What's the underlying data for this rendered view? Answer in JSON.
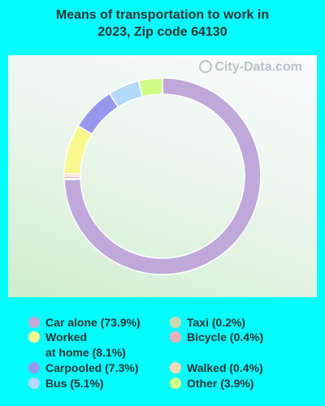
{
  "chart_data": {
    "type": "pie",
    "title": "Means of transportation to work in 2023, Zip code 64130",
    "categories": [
      "Car alone",
      "Taxi",
      "Bicycle",
      "Walked",
      "Worked at home",
      "Carpooled",
      "Bus",
      "Other"
    ],
    "values": [
      73.9,
      0.2,
      0.4,
      0.4,
      8.1,
      7.3,
      5.1,
      3.9
    ],
    "colors": [
      "#BFA8DA",
      "#C9D8B0",
      "#F0B0B8",
      "#F9D9B5",
      "#F8F88E",
      "#9797EE",
      "#B3D9FB",
      "#CFFD88"
    ],
    "legend_placement": "bottom",
    "donut": true
  },
  "title_line1": "Means of transportation to work in",
  "title_line2": "2023, Zip code 64130",
  "watermark": "City-Data.com",
  "legend": [
    {
      "label": "Car alone (73.9%)",
      "color": "#BFA8DA"
    },
    {
      "label": "Worked",
      "label2": "at home (8.1%)",
      "color": "#F8F88E"
    },
    {
      "label": "Carpooled (7.3%)",
      "color": "#9797EE"
    },
    {
      "label": "Bus (5.1%)",
      "color": "#B3D9FB"
    },
    {
      "label": "Taxi (0.2%)",
      "color": "#C9D8B0"
    },
    {
      "label": "Bicycle (0.4%)",
      "color": "#F0B0B8"
    },
    {
      "label": "Walked (0.4%)",
      "color": "#F9D9B5"
    },
    {
      "label": "Other (3.9%)",
      "color": "#CFFD88"
    }
  ]
}
